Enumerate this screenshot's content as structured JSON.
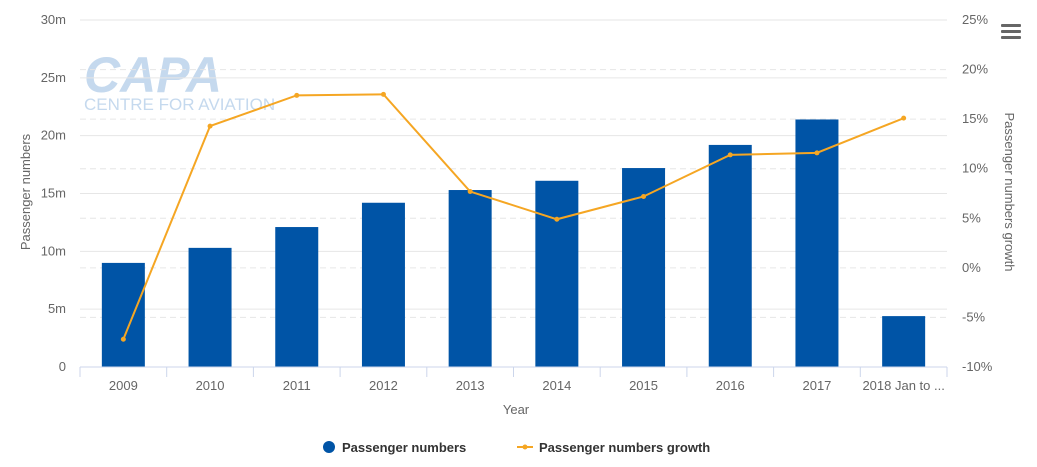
{
  "watermark": {
    "brand": "CAPA",
    "tagline": "CENTRE FOR AVIATION"
  },
  "menu_icon": "hamburger-menu-icon",
  "colors": {
    "bar": "#0054a6",
    "line": "#f5a623",
    "grid": "#e6e6e6",
    "watermark": "#c5d9ee"
  },
  "chart_data": {
    "type": "bar",
    "categories": [
      "2009",
      "2010",
      "2011",
      "2012",
      "2013",
      "2014",
      "2015",
      "2016",
      "2017",
      "2018 Jan to ..."
    ],
    "xlabel": "Year",
    "ylabel": "Passenger numbers",
    "y2label": "Passenger numbers growth",
    "ylim": [
      0,
      30000000
    ],
    "y2lim": [
      -10,
      25
    ],
    "yticks": [
      "0",
      "5m",
      "10m",
      "15m",
      "20m",
      "25m",
      "30m"
    ],
    "y2ticks": [
      "-10%",
      "-5%",
      "0%",
      "5%",
      "10%",
      "15%",
      "20%",
      "25%"
    ],
    "grid": true,
    "legend_position": "bottom-center",
    "series": [
      {
        "name": "Passenger numbers",
        "type": "bar",
        "axis": "left",
        "values": [
          9000000,
          10300000,
          12100000,
          14200000,
          15300000,
          16100000,
          17200000,
          19200000,
          21400000,
          4400000
        ]
      },
      {
        "name": "Passenger numbers growth",
        "type": "line",
        "axis": "right",
        "values": [
          -7.2,
          14.3,
          17.4,
          17.5,
          7.7,
          4.9,
          7.2,
          11.4,
          11.6,
          15.1
        ]
      }
    ]
  }
}
